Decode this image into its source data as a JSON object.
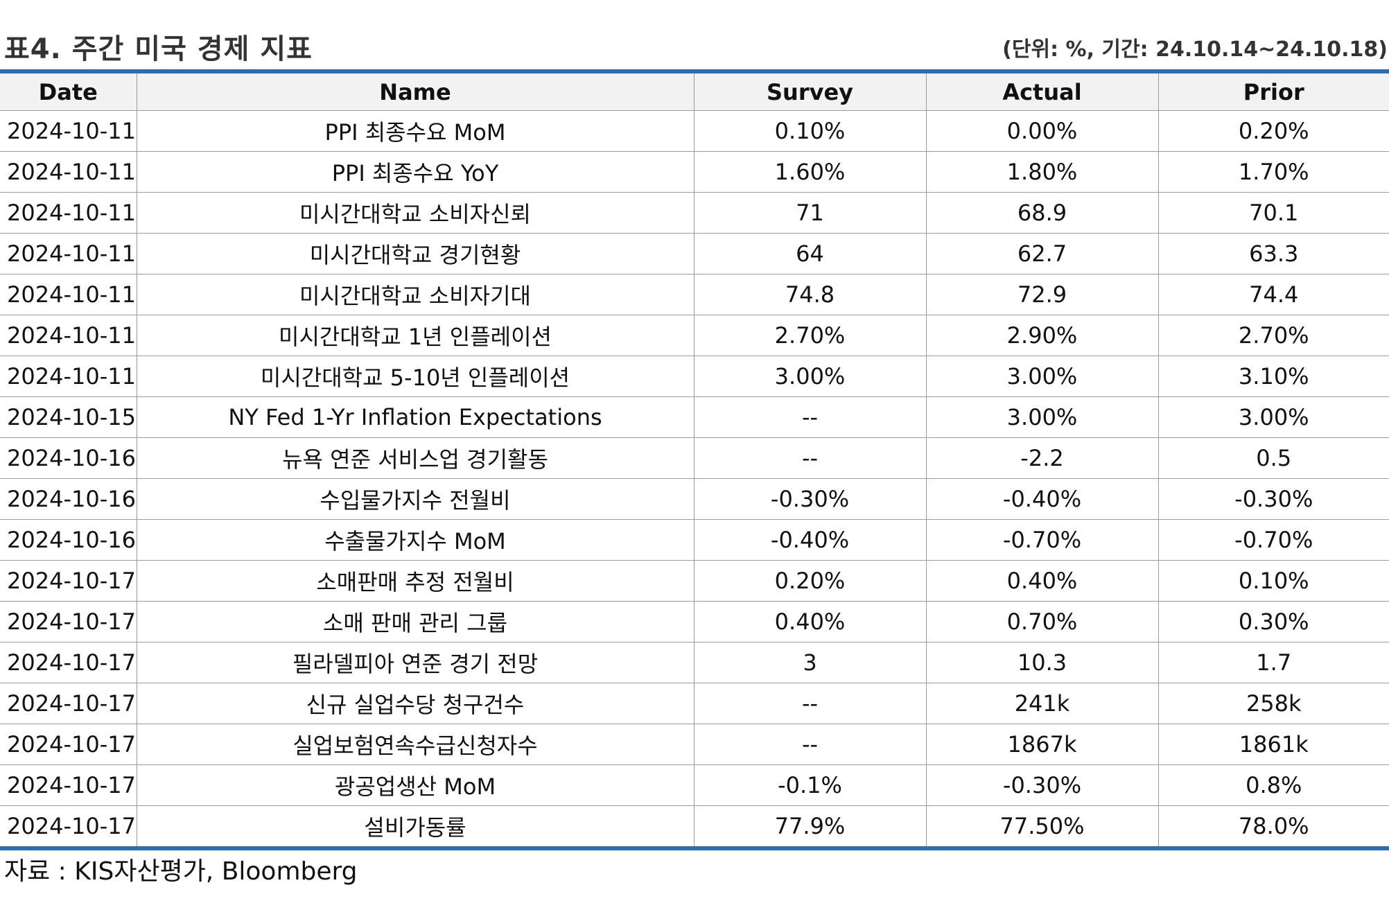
{
  "header": {
    "title": "표4. 주간 미국 경제 지표",
    "unit_note": "(단위: %, 기간: 24.10.14~24.10.18)"
  },
  "table": {
    "columns": [
      "Date",
      "Name",
      "Survey",
      "Actual",
      "Prior"
    ],
    "rows": [
      [
        "2024-10-11",
        "PPI 최종수요 MoM",
        "0.10%",
        "0.00%",
        "0.20%"
      ],
      [
        "2024-10-11",
        "PPI 최종수요 YoY",
        "1.60%",
        "1.80%",
        "1.70%"
      ],
      [
        "2024-10-11",
        "미시간대학교 소비자신뢰",
        "71",
        "68.9",
        "70.1"
      ],
      [
        "2024-10-11",
        "미시간대학교 경기현황",
        "64",
        "62.7",
        "63.3"
      ],
      [
        "2024-10-11",
        "미시간대학교 소비자기대",
        "74.8",
        "72.9",
        "74.4"
      ],
      [
        "2024-10-11",
        "미시간대학교 1년 인플레이션",
        "2.70%",
        "2.90%",
        "2.70%"
      ],
      [
        "2024-10-11",
        "미시간대학교 5-10년 인플레이션",
        "3.00%",
        "3.00%",
        "3.10%"
      ],
      [
        "2024-10-15",
        "NY Fed 1-Yr Inflation Expectations",
        "--",
        "3.00%",
        "3.00%"
      ],
      [
        "2024-10-16",
        "뉴욕 연준 서비스업 경기활동",
        "--",
        "-2.2",
        "0.5"
      ],
      [
        "2024-10-16",
        "수입물가지수 전월비",
        "-0.30%",
        "-0.40%",
        "-0.30%"
      ],
      [
        "2024-10-16",
        "수출물가지수 MoM",
        "-0.40%",
        "-0.70%",
        "-0.70%"
      ],
      [
        "2024-10-17",
        "소매판매 추정 전월비",
        "0.20%",
        "0.40%",
        "0.10%"
      ],
      [
        "2024-10-17",
        "소매 판매 관리 그룹",
        "0.40%",
        "0.70%",
        "0.30%"
      ],
      [
        "2024-10-17",
        "필라델피아 연준 경기 전망",
        "3",
        "10.3",
        "1.7"
      ],
      [
        "2024-10-17",
        "신규 실업수당 청구건수",
        "--",
        "241k",
        "258k"
      ],
      [
        "2024-10-17",
        "실업보험연속수급신청자수",
        "--",
        "1867k",
        "1861k"
      ],
      [
        "2024-10-17",
        "광공업생산 MoM",
        "-0.1%",
        "-0.30%",
        "0.8%"
      ],
      [
        "2024-10-17",
        "설비가동률",
        "77.9%",
        "77.50%",
        "78.0%"
      ]
    ]
  },
  "footer": {
    "source": "자료 : KIS자산평가, Bloomberg"
  },
  "colors": {
    "accent_rule": "#2e6db4",
    "header_bg": "#f2f2f2"
  }
}
